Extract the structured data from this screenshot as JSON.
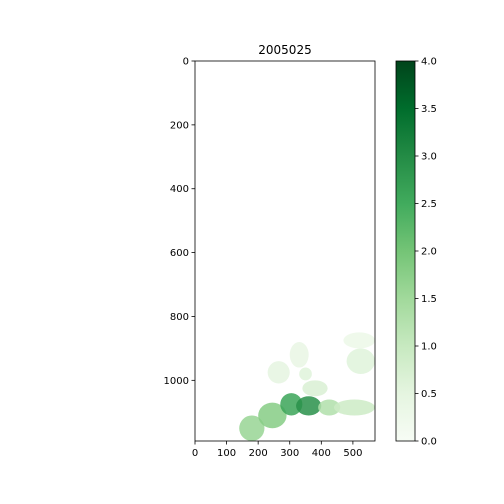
{
  "chart_data": {
    "type": "heatmap",
    "title": "2005025",
    "xlabel": "",
    "ylabel": "",
    "colormap": "Greens",
    "x_range": [
      0,
      570
    ],
    "y_range": [
      0,
      1190
    ],
    "y_inverted": true,
    "x_ticks": [
      0,
      100,
      200,
      300,
      400,
      500
    ],
    "y_ticks": [
      0,
      200,
      400,
      600,
      800,
      1000
    ],
    "colorbar": {
      "min": 0.0,
      "max": 4.0,
      "ticks": [
        "0.0",
        "0.5",
        "1.0",
        "1.5",
        "2.0",
        "2.5",
        "3.0",
        "3.5",
        "4.0"
      ]
    },
    "colors": {
      "low": "#f7fcf5",
      "high": "#00441b"
    },
    "regions": [
      {
        "x0": 140,
        "x1": 220,
        "y0": 1110,
        "y1": 1190,
        "value": 1.6
      },
      {
        "x0": 200,
        "x1": 290,
        "y0": 1070,
        "y1": 1150,
        "value": 1.8
      },
      {
        "x0": 270,
        "x1": 340,
        "y0": 1040,
        "y1": 1110,
        "value": 2.6
      },
      {
        "x0": 320,
        "x1": 400,
        "y0": 1050,
        "y1": 1110,
        "value": 2.9
      },
      {
        "x0": 390,
        "x1": 460,
        "y0": 1060,
        "y1": 1110,
        "value": 1.3
      },
      {
        "x0": 440,
        "x1": 570,
        "y0": 1060,
        "y1": 1110,
        "value": 0.9
      },
      {
        "x0": 330,
        "x1": 370,
        "y0": 960,
        "y1": 1000,
        "value": 0.6
      },
      {
        "x0": 230,
        "x1": 300,
        "y0": 940,
        "y1": 1010,
        "value": 0.5
      },
      {
        "x0": 340,
        "x1": 420,
        "y0": 1000,
        "y1": 1050,
        "value": 0.7
      },
      {
        "x0": 300,
        "x1": 360,
        "y0": 880,
        "y1": 960,
        "value": 0.4
      },
      {
        "x0": 480,
        "x1": 570,
        "y0": 900,
        "y1": 980,
        "value": 0.6
      },
      {
        "x0": 470,
        "x1": 570,
        "y0": 850,
        "y1": 900,
        "value": 0.3
      }
    ]
  }
}
